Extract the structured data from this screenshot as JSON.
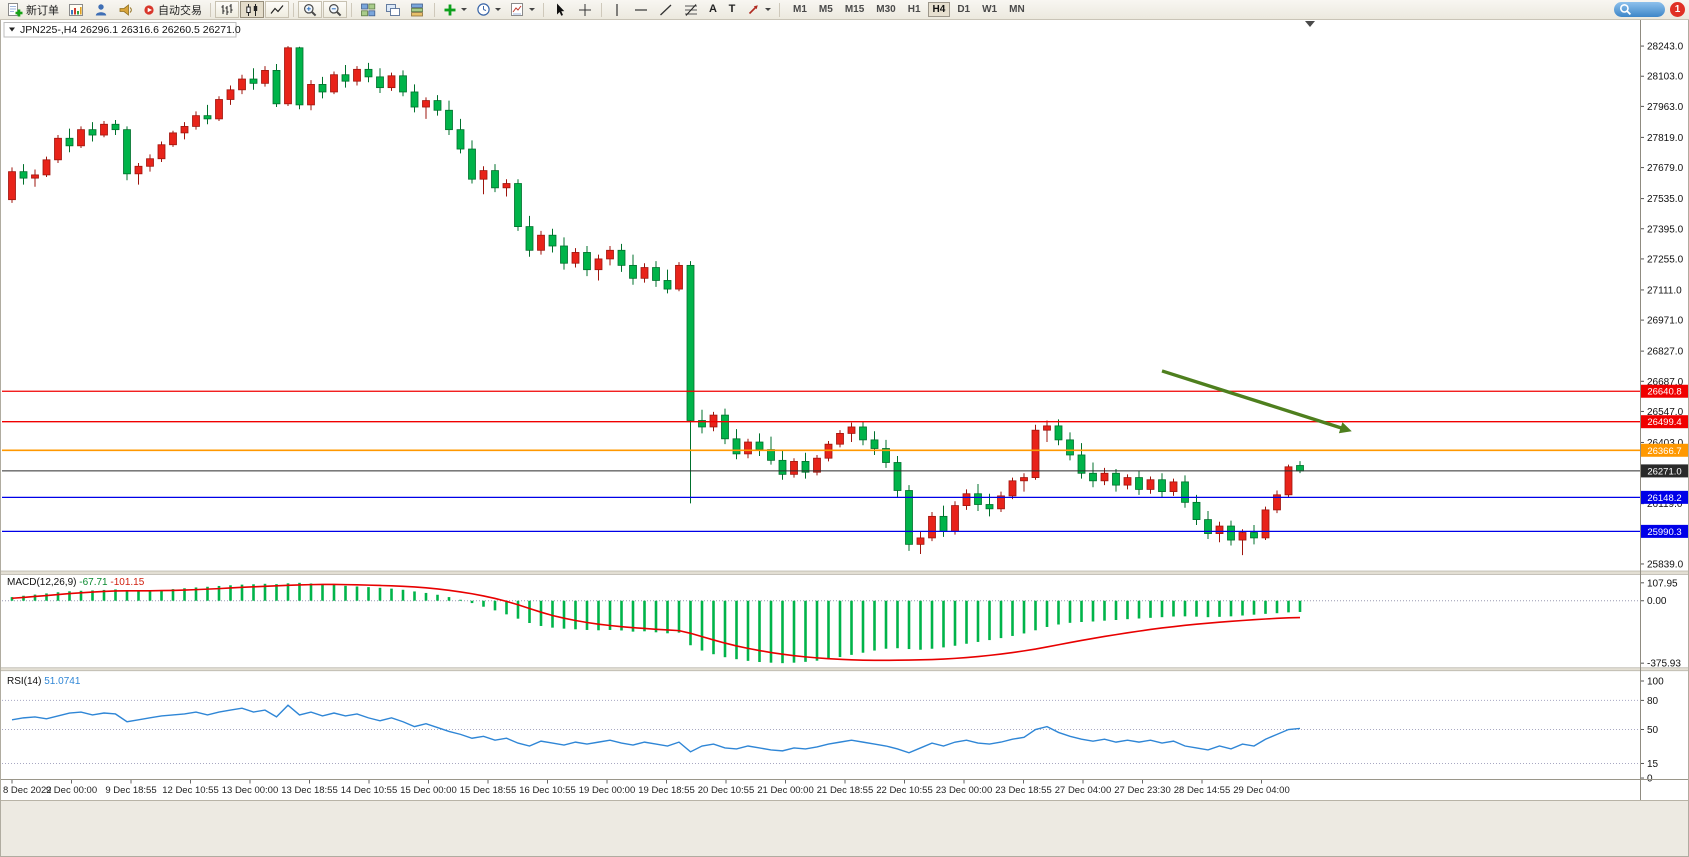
{
  "toolbar": {
    "new_order_label": "新订单",
    "autotrading_label": "自动交易",
    "text_tool_glyph": "A",
    "label_tool_glyph": "T",
    "timeframes": [
      "M1",
      "M5",
      "M15",
      "M30",
      "H1",
      "H4",
      "D1",
      "W1",
      "MN"
    ],
    "active_timeframe": "H4",
    "notification_count": "1"
  },
  "chart": {
    "title_symbol": "JPN225-,H4",
    "title_ohlc": "26296.1 26316.6 26260.5 26271.0"
  },
  "chart_data": {
    "type": "candlestick",
    "symbol": "JPN225-",
    "timeframe": "H4",
    "current_ohlc": {
      "open": 26296.1,
      "high": 26316.6,
      "low": 26260.5,
      "close": 26271.0
    },
    "up_color": "#e8231a",
    "up_stroke": "#9e150d",
    "down_color": "#00b44a",
    "down_stroke": "#00702c",
    "ylim": [
      25811,
      28364
    ],
    "price_ticks": [
      28243.0,
      28103.0,
      27963.0,
      27819.0,
      27679.0,
      27535.0,
      27395.0,
      27255.0,
      27111.0,
      26971.0,
      26827.0,
      26687.0,
      26547.0,
      26403.0,
      26119.0,
      25839.0
    ],
    "hlines": [
      {
        "price": 26640.8,
        "label": "26640.8",
        "color": "#f00000",
        "width": 1.3
      },
      {
        "price": 26499.4,
        "label": "26499.4",
        "color": "#f00000",
        "width": 1.3
      },
      {
        "price": 26366.7,
        "label": "26366.7",
        "color": "#ff9800",
        "width": 1.6
      },
      {
        "price": 26271.0,
        "label": "26271.0",
        "color": "#2a2a2a",
        "width": 1.0
      },
      {
        "price": 26148.2,
        "label": "26148.2",
        "color": "#0000e8",
        "width": 1.3
      },
      {
        "price": 25990.3,
        "label": "25990.3",
        "color": "#0000e8",
        "width": 1.3
      }
    ],
    "candles": [
      [
        27530,
        27680,
        27515,
        27660
      ],
      [
        27660,
        27695,
        27600,
        27630
      ],
      [
        27630,
        27670,
        27590,
        27645
      ],
      [
        27645,
        27730,
        27635,
        27715
      ],
      [
        27715,
        27830,
        27700,
        27815
      ],
      [
        27815,
        27860,
        27750,
        27780
      ],
      [
        27780,
        27870,
        27770,
        27855
      ],
      [
        27855,
        27890,
        27800,
        27830
      ],
      [
        27830,
        27895,
        27820,
        27880
      ],
      [
        27880,
        27900,
        27830,
        27855
      ],
      [
        27855,
        27870,
        27620,
        27650
      ],
      [
        27650,
        27700,
        27600,
        27685
      ],
      [
        27685,
        27740,
        27660,
        27720
      ],
      [
        27720,
        27800,
        27705,
        27785
      ],
      [
        27785,
        27850,
        27775,
        27840
      ],
      [
        27840,
        27890,
        27810,
        27870
      ],
      [
        27870,
        27940,
        27855,
        27920
      ],
      [
        27920,
        27970,
        27880,
        27905
      ],
      [
        27905,
        28010,
        27895,
        27995
      ],
      [
        27995,
        28060,
        27970,
        28040
      ],
      [
        28040,
        28110,
        28020,
        28090
      ],
      [
        28090,
        28140,
        28040,
        28070
      ],
      [
        28070,
        28150,
        28055,
        28130
      ],
      [
        28130,
        28160,
        27960,
        27975
      ],
      [
        27975,
        28243,
        27965,
        28235
      ],
      [
        28235,
        28240,
        27950,
        27970
      ],
      [
        27970,
        28085,
        27945,
        28065
      ],
      [
        28065,
        28100,
        28000,
        28030
      ],
      [
        28030,
        28125,
        28020,
        28110
      ],
      [
        28110,
        28155,
        28050,
        28080
      ],
      [
        28080,
        28150,
        28060,
        28135
      ],
      [
        28135,
        28165,
        28075,
        28100
      ],
      [
        28100,
        28140,
        28025,
        28050
      ],
      [
        28050,
        28120,
        28035,
        28105
      ],
      [
        28105,
        28130,
        28010,
        28030
      ],
      [
        28030,
        28065,
        27935,
        27960
      ],
      [
        27960,
        28005,
        27905,
        27990
      ],
      [
        27990,
        28015,
        27920,
        27945
      ],
      [
        27945,
        27990,
        27830,
        27855
      ],
      [
        27855,
        27905,
        27745,
        27765
      ],
      [
        27765,
        27805,
        27605,
        27625
      ],
      [
        27625,
        27685,
        27555,
        27665
      ],
      [
        27665,
        27695,
        27565,
        27585
      ],
      [
        27585,
        27625,
        27545,
        27605
      ],
      [
        27605,
        27625,
        27385,
        27405
      ],
      [
        27405,
        27455,
        27265,
        27295
      ],
      [
        27295,
        27385,
        27275,
        27365
      ],
      [
        27365,
        27395,
        27285,
        27315
      ],
      [
        27315,
        27355,
        27205,
        27235
      ],
      [
        27235,
        27305,
        27215,
        27285
      ],
      [
        27285,
        27315,
        27175,
        27205
      ],
      [
        27205,
        27275,
        27155,
        27255
      ],
      [
        27255,
        27315,
        27225,
        27295
      ],
      [
        27295,
        27325,
        27195,
        27225
      ],
      [
        27225,
        27275,
        27135,
        27165
      ],
      [
        27165,
        27235,
        27145,
        27215
      ],
      [
        27215,
        27245,
        27125,
        27155
      ],
      [
        27155,
        27205,
        27095,
        27115
      ],
      [
        27115,
        27240,
        27105,
        27225
      ],
      [
        27225,
        27245,
        26120,
        26505
      ],
      [
        26505,
        26555,
        26445,
        26475
      ],
      [
        26475,
        26545,
        26455,
        26530
      ],
      [
        26530,
        26560,
        26395,
        26420
      ],
      [
        26420,
        26465,
        26325,
        26350
      ],
      [
        26350,
        26420,
        26330,
        26405
      ],
      [
        26405,
        26445,
        26340,
        26370
      ],
      [
        26370,
        26430,
        26300,
        26320
      ],
      [
        26320,
        26370,
        26230,
        26255
      ],
      [
        26255,
        26330,
        26240,
        26315
      ],
      [
        26315,
        26355,
        26235,
        26265
      ],
      [
        26265,
        26345,
        26250,
        26330
      ],
      [
        26330,
        26410,
        26315,
        26395
      ],
      [
        26395,
        26460,
        26380,
        26445
      ],
      [
        26445,
        26495,
        26405,
        26475
      ],
      [
        26475,
        26500,
        26390,
        26415
      ],
      [
        26415,
        26455,
        26345,
        26375
      ],
      [
        26375,
        26415,
        26285,
        26310
      ],
      [
        26310,
        26340,
        26150,
        26180
      ],
      [
        26180,
        26205,
        25900,
        25930
      ],
      [
        25930,
        25990,
        25885,
        25960
      ],
      [
        25960,
        26080,
        25945,
        26060
      ],
      [
        26060,
        26110,
        25965,
        25990
      ],
      [
        25990,
        26130,
        25975,
        26110
      ],
      [
        26110,
        26185,
        26090,
        26165
      ],
      [
        26165,
        26210,
        26085,
        26115
      ],
      [
        26115,
        26165,
        26060,
        26095
      ],
      [
        26095,
        26175,
        26080,
        26155
      ],
      [
        26155,
        26240,
        26140,
        26225
      ],
      [
        26225,
        26260,
        26175,
        26240
      ],
      [
        26240,
        26485,
        26230,
        26460
      ],
      [
        26460,
        26505,
        26405,
        26480
      ],
      [
        26480,
        26510,
        26390,
        26415
      ],
      [
        26415,
        26450,
        26320,
        26345
      ],
      [
        26345,
        26400,
        26235,
        26260
      ],
      [
        26260,
        26310,
        26195,
        26225
      ],
      [
        26225,
        26285,
        26205,
        26260
      ],
      [
        26260,
        26280,
        26175,
        26205
      ],
      [
        26205,
        26255,
        26185,
        26240
      ],
      [
        26240,
        26270,
        26160,
        26185
      ],
      [
        26185,
        26245,
        26165,
        26230
      ],
      [
        26230,
        26260,
        26150,
        26175
      ],
      [
        26175,
        26235,
        26155,
        26220
      ],
      [
        26220,
        26250,
        26100,
        26125
      ],
      [
        26125,
        26160,
        26020,
        26045
      ],
      [
        26045,
        26085,
        25955,
        25980
      ],
      [
        25980,
        26035,
        25940,
        26015
      ],
      [
        26015,
        26040,
        25925,
        25950
      ],
      [
        25950,
        26000,
        25880,
        25985
      ],
      [
        25985,
        26020,
        25930,
        25960
      ],
      [
        25960,
        26105,
        25950,
        26090
      ],
      [
        26090,
        26180,
        26075,
        26160
      ],
      [
        26160,
        26300,
        26150,
        26290
      ],
      [
        26296.1,
        26316.6,
        26260.5,
        26271.0
      ]
    ],
    "x_labels": [
      "8 Dec 2022",
      "9 Dec 00:00",
      "9 Dec 18:55",
      "12 Dec 10:55",
      "13 Dec 00:00",
      "13 Dec 18:55",
      "14 Dec 10:55",
      "15 Dec 00:00",
      "15 Dec 18:55",
      "16 Dec 10:55",
      "19 Dec 00:00",
      "19 Dec 18:55",
      "20 Dec 10:55",
      "21 Dec 00:00",
      "21 Dec 18:55",
      "22 Dec 10:55",
      "23 Dec 00:00",
      "23 Dec 18:55",
      "27 Dec 04:00",
      "27 Dec 23:30",
      "28 Dec 14:55",
      "29 Dec 04:00"
    ],
    "annotation_arrow": {
      "from_index": 100,
      "from_price": 26735,
      "to_index": 116.5,
      "to_price": 26455,
      "color": "#4e7f1e"
    },
    "macd": {
      "label": "MACD(12,26,9)",
      "main_value": "-67.71",
      "signal_value": "-101.15",
      "axis_ticks": [
        107.95,
        0,
        -375.93
      ],
      "ylim": [
        -399,
        155
      ],
      "hist_color": "#00b44a",
      "signal_color": "#e80000",
      "histogram": [
        22,
        30,
        37,
        44,
        51,
        57,
        60,
        62,
        65,
        68,
        62,
        58,
        60,
        64,
        70,
        75,
        80,
        84,
        89,
        93,
        97,
        99,
        102,
        100,
        105,
        107.9,
        104,
        99,
        95,
        90,
        86,
        82,
        78,
        73,
        66,
        56,
        47,
        36,
        22,
        6,
        -14,
        -36,
        -58,
        -82,
        -108,
        -134,
        -152,
        -162,
        -168,
        -172,
        -176,
        -178,
        -176,
        -179,
        -186,
        -184,
        -190,
        -196,
        -192,
        -268,
        -300,
        -322,
        -340,
        -352,
        -362,
        -369,
        -373,
        -375.9,
        -373,
        -368,
        -361,
        -351,
        -339,
        -326,
        -313,
        -300,
        -289,
        -286,
        -291,
        -295,
        -289,
        -281,
        -271,
        -259,
        -248,
        -237,
        -225,
        -212,
        -197,
        -178,
        -158,
        -143,
        -133,
        -128,
        -125,
        -120,
        -116,
        -111,
        -107,
        -103,
        -99,
        -95,
        -94,
        -96,
        -99,
        -97,
        -94,
        -89,
        -84,
        -79,
        -75,
        -70,
        -67.71
      ],
      "signal": [
        15,
        20,
        26,
        31,
        37,
        43,
        48,
        52,
        56,
        59,
        60,
        60,
        60,
        61,
        62,
        64,
        67,
        70,
        73,
        77,
        81,
        84,
        87,
        90,
        93,
        95,
        97,
        98,
        98,
        97,
        96,
        94,
        92,
        90,
        87,
        83,
        78,
        71,
        63,
        53,
        42,
        29,
        14,
        -4,
        -24,
        -47,
        -69,
        -89,
        -105,
        -119,
        -131,
        -141,
        -149,
        -156,
        -162,
        -167,
        -172,
        -176,
        -180,
        -196,
        -216,
        -236,
        -255,
        -272,
        -287,
        -300,
        -312,
        -322,
        -331,
        -338,
        -344,
        -349,
        -353,
        -356,
        -358,
        -359,
        -359,
        -358,
        -357,
        -356,
        -354,
        -351,
        -347,
        -342,
        -336,
        -329,
        -321,
        -312,
        -302,
        -291,
        -278,
        -265,
        -252,
        -239,
        -227,
        -215,
        -204,
        -193,
        -183,
        -173,
        -164,
        -156,
        -148,
        -141,
        -135,
        -129,
        -124,
        -119,
        -114,
        -110,
        -106,
        -103,
        -101.15
      ]
    },
    "rsi": {
      "label": "RSI(14)",
      "value": "51.0741",
      "levels": [
        80,
        50,
        15
      ],
      "axis_ticks": [
        100,
        80,
        50,
        15,
        0
      ],
      "ylim": [
        -1,
        110.3
      ],
      "line_color": "#2f86d6",
      "values": [
        60,
        62,
        63,
        61,
        64,
        67,
        68,
        65,
        67,
        66,
        58,
        60,
        62,
        64,
        65,
        66,
        68,
        65,
        68,
        70,
        72,
        68,
        70,
        63,
        75,
        65,
        68,
        64,
        67,
        64,
        66,
        62,
        59,
        62,
        58,
        53,
        56,
        52,
        48,
        45,
        41,
        43,
        39,
        41,
        36,
        33,
        38,
        36,
        34,
        37,
        35,
        37,
        39,
        36,
        34,
        37,
        35,
        33,
        37,
        27,
        33,
        35,
        31,
        30,
        33,
        31,
        29,
        28,
        31,
        30,
        32,
        35,
        37,
        39,
        37,
        35,
        33,
        30,
        26,
        31,
        36,
        33,
        37,
        39,
        36,
        35,
        37,
        40,
        42,
        50,
        53,
        47,
        43,
        40,
        38,
        40,
        37,
        39,
        37,
        39,
        36,
        38,
        33,
        31,
        29,
        33,
        30,
        35,
        33,
        40,
        45,
        50,
        51.07
      ]
    }
  }
}
